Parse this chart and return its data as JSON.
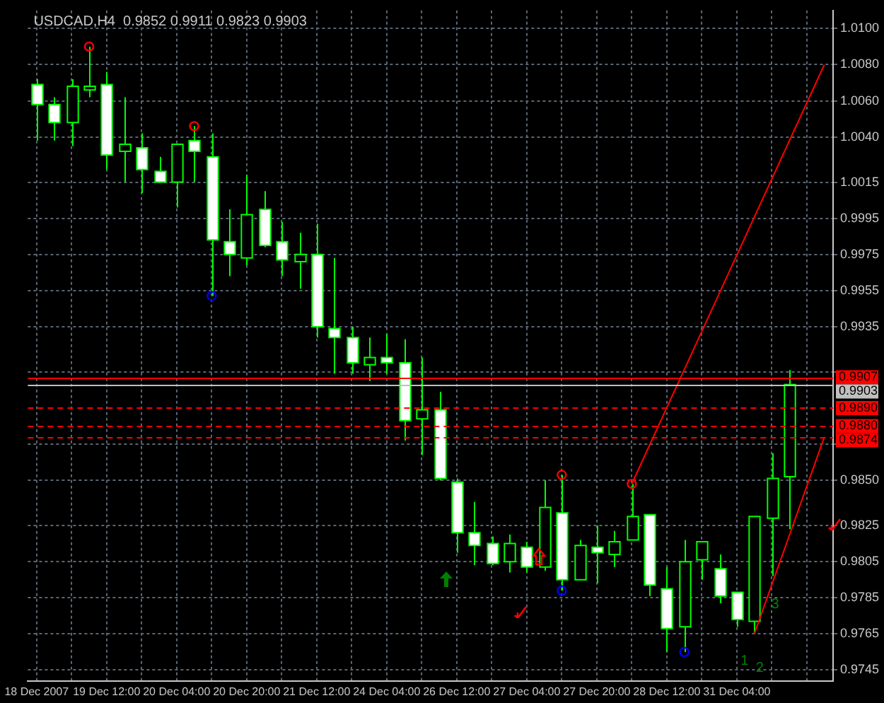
{
  "chart_data": {
    "type": "candlestick",
    "title": "USDCAD,H4  0.9852 0.9911 0.9823 0.9903",
    "categories": [
      "18 Dec 2007",
      null,
      null,
      null,
      "19 Dec 12:00",
      null,
      null,
      null,
      "20 Dec 04:00",
      null,
      null,
      null,
      "20 Dec 20:00",
      null,
      null,
      null,
      "21 Dec 12:00",
      null,
      null,
      null,
      "24 Dec 04:00",
      null,
      null,
      null,
      "26 Dec 12:00",
      null,
      null,
      null,
      "27 Dec 04:00",
      null,
      null,
      null,
      "27 Dec 20:00",
      null,
      null,
      null,
      "28 Dec 12:00",
      null,
      null,
      null,
      "31 Dec 04:00",
      null,
      null,
      null,
      null,
      null
    ],
    "colors": [
      "#ffffff",
      "#ffffff",
      "#000000",
      "#000000",
      "#ffffff",
      "#000000",
      "#ffffff",
      "#ffffff",
      "#000000",
      "#ffffff",
      "#ffffff",
      "#ffffff",
      "#000000",
      "#ffffff",
      "#ffffff",
      "#000000",
      "#ffffff",
      "#ffffff",
      "#ffffff",
      "#000000",
      "#ffffff",
      "#ffffff",
      "#000000",
      "#ffffff",
      "#ffffff",
      "#ffffff",
      "#ffffff",
      "#000000",
      "#ffffff",
      "#000000",
      "#ffffff",
      "#000000",
      "#ffffff",
      "#000000",
      "#000000",
      "#ffffff",
      "#ffffff",
      "#000000",
      "#000000",
      "#ffffff",
      "#ffffff",
      "#000000",
      "#000000",
      "#000000",
      null,
      null
    ],
    "ohlc": [
      [
        1.0069,
        1.0072,
        1.0038,
        1.0058
      ],
      [
        1.0058,
        1.0062,
        1.0038,
        1.0048
      ],
      [
        1.0048,
        1.0072,
        1.0035,
        1.0068
      ],
      [
        1.0066,
        1.009,
        1.0062,
        1.0068
      ],
      [
        1.0069,
        1.0076,
        1.0022,
        1.003
      ],
      [
        1.0032,
        1.0062,
        1.0015,
        1.0036
      ],
      [
        1.0034,
        1.0042,
        1.0009,
        1.0022
      ],
      [
        1.0021,
        1.0029,
        1.0015,
        1.0015
      ],
      [
        1.0015,
        1.0036,
        1.0001,
        1.0036
      ],
      [
        1.0038,
        1.0046,
        1.0015,
        1.0032
      ],
      [
        1.0029,
        1.0042,
        0.9952,
        0.9983
      ],
      [
        0.9982,
        1.0,
        0.9963,
        0.9975
      ],
      [
        0.9973,
        1.0019,
        0.9969,
        0.9997
      ],
      [
        1.0,
        1.001,
        0.9979,
        0.998
      ],
      [
        0.9982,
        0.9993,
        0.9963,
        0.9972
      ],
      [
        0.9971,
        0.9987,
        0.9956,
        0.9975
      ],
      [
        0.9975,
        0.9992,
        0.9929,
        0.9935
      ],
      [
        0.9934,
        0.9973,
        0.9909,
        0.9929
      ],
      [
        0.9929,
        0.9935,
        0.9909,
        0.9915
      ],
      [
        0.9914,
        0.9929,
        0.9905,
        0.9918
      ],
      [
        0.9918,
        0.9931,
        0.9909,
        0.9915
      ],
      [
        0.9915,
        0.9928,
        0.9872,
        0.9883
      ],
      [
        0.9884,
        0.9918,
        0.9864,
        0.9889
      ],
      [
        0.9889,
        0.9899,
        0.985,
        0.9851
      ],
      [
        0.9849,
        0.9851,
        0.981,
        0.9821
      ],
      [
        0.9821,
        0.9838,
        0.9803,
        0.9814
      ],
      [
        0.9815,
        0.9819,
        0.9803,
        0.9804
      ],
      [
        0.9805,
        0.982,
        0.9799,
        0.9815
      ],
      [
        0.9813,
        0.9816,
        0.9799,
        0.9802
      ],
      [
        0.9802,
        0.985,
        0.98,
        0.9835
      ],
      [
        0.9832,
        0.9853,
        0.9789,
        0.9795
      ],
      [
        0.9795,
        0.9817,
        0.9795,
        0.9814
      ],
      [
        0.9813,
        0.9825,
        0.9793,
        0.981
      ],
      [
        0.9809,
        0.9822,
        0.9802,
        0.9816
      ],
      [
        0.9817,
        0.9848,
        0.9817,
        0.983
      ],
      [
        0.9831,
        0.9831,
        0.9786,
        0.9792
      ],
      [
        0.979,
        0.9802,
        0.9755,
        0.9768
      ],
      [
        0.9769,
        0.9817,
        0.9755,
        0.9805
      ],
      [
        0.9806,
        0.9816,
        0.9795,
        0.9816
      ],
      [
        0.9801,
        0.9809,
        0.9782,
        0.9786
      ],
      [
        0.9788,
        0.9788,
        0.9769,
        0.9773
      ],
      [
        0.9772,
        0.983,
        0.9765,
        0.983
      ],
      [
        0.9829,
        0.9865,
        0.9797,
        0.9851
      ],
      [
        0.9852,
        0.9911,
        0.9823,
        0.9903
      ],
      null,
      null
    ],
    "series": [
      {
        "type": "line",
        "color": "#ff0000",
        "marker": "none",
        "values": [
          null,
          null,
          null,
          null,
          null,
          null,
          null,
          null,
          null,
          null,
          null,
          null,
          null,
          null,
          null,
          null,
          null,
          null,
          null,
          null,
          null,
          null,
          null,
          null,
          null,
          null,
          null,
          null,
          null,
          null,
          null,
          null,
          null,
          null,
          0.9848,
          null,
          null,
          null,
          null,
          null,
          null,
          null,
          null,
          null,
          null,
          1.008
        ]
      },
      {
        "type": "line",
        "color": "#ff0000",
        "marker": "none",
        "values": [
          null,
          null,
          null,
          null,
          null,
          null,
          null,
          null,
          null,
          null,
          null,
          null,
          null,
          null,
          null,
          null,
          null,
          null,
          null,
          null,
          null,
          null,
          null,
          null,
          null,
          null,
          null,
          null,
          null,
          null,
          null,
          null,
          null,
          null,
          null,
          null,
          null,
          null,
          null,
          null,
          null,
          0.9765,
          null,
          null,
          null,
          0.9874
        ]
      },
      {
        "type": "scatter",
        "color": "#ff0000",
        "marker": "circle",
        "values": [
          null,
          null,
          null,
          1.009,
          null,
          null,
          null,
          null,
          null,
          1.0046,
          null,
          null,
          null,
          null,
          null,
          null,
          null,
          null,
          null,
          null,
          null,
          null,
          null,
          null,
          null,
          null,
          null,
          null,
          null,
          null,
          0.9853,
          null,
          null,
          null,
          0.9848,
          null,
          null,
          null,
          null,
          null,
          null,
          null,
          null,
          null,
          null,
          null
        ]
      },
      {
        "type": "scatter",
        "color": "#0000ff",
        "marker": "circle",
        "values": [
          null,
          null,
          null,
          null,
          null,
          null,
          null,
          null,
          null,
          null,
          0.9952,
          null,
          null,
          null,
          null,
          null,
          null,
          null,
          null,
          null,
          null,
          null,
          null,
          null,
          null,
          null,
          null,
          null,
          null,
          null,
          0.9789,
          null,
          null,
          null,
          null,
          null,
          null,
          0.9755,
          null,
          null,
          null,
          null,
          null,
          null,
          null,
          null
        ]
      }
    ],
    "ylim": [
      0.9739,
      1.011
    ],
    "yticks": [
      {
        "value": 1.01,
        "label": "1.0100"
      },
      {
        "value": 1.008,
        "label": "1.0080"
      },
      {
        "value": 1.006,
        "label": "1.0060"
      },
      {
        "value": 1.004,
        "label": "1.0040"
      },
      {
        "value": 1.0015,
        "label": "1.0015"
      },
      {
        "value": 0.9995,
        "label": "0.9995"
      },
      {
        "value": 0.9975,
        "label": "0.9975"
      },
      {
        "value": 0.9955,
        "label": "0.9955"
      },
      {
        "value": 0.9935,
        "label": "0.9935"
      },
      {
        "value": 0.991,
        "label": null
      },
      {
        "value": 0.987,
        "label": null
      },
      {
        "value": 0.985,
        "label": "0.9850"
      },
      {
        "value": 0.9825,
        "label": "0.9825"
      },
      {
        "value": 0.9805,
        "label": "0.9805"
      },
      {
        "value": 0.9785,
        "label": "0.9785"
      },
      {
        "value": 0.9765,
        "label": "0.9765"
      },
      {
        "value": 0.9745,
        "label": "0.9745"
      }
    ],
    "ref_lines": [
      {
        "axis": "y",
        "value": 0.9907,
        "label": "0.9907",
        "color": "#ff0000",
        "line_style": "solid"
      },
      {
        "axis": "y",
        "value": 0.9903,
        "label": "0.9903",
        "color": "#c0c0c0",
        "line_style": "solid"
      },
      {
        "axis": "y",
        "value": 0.989,
        "label": "0.9890",
        "color": "#ff0000",
        "line_style": "dashed"
      },
      {
        "axis": "y",
        "value": 0.988,
        "label": "0.9880",
        "color": "#ff0000",
        "line_style": "dashed"
      },
      {
        "axis": "y",
        "value": 0.9874,
        "label": "0.9874",
        "color": "#ff0000",
        "line_style": "dashed"
      }
    ],
    "annotations": [
      "1",
      "2",
      "3"
    ],
    "grid": true,
    "legend": false
  }
}
